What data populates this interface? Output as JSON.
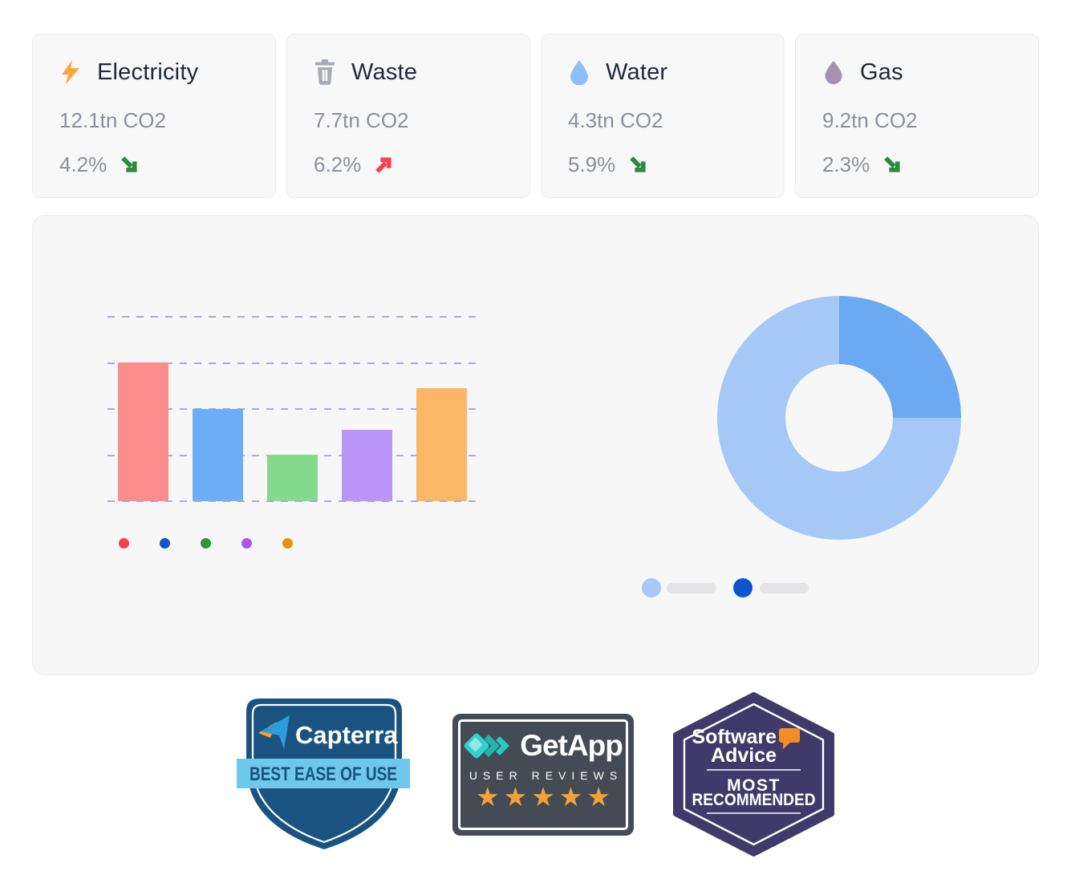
{
  "page": {
    "background": "#FFFFFF",
    "card_bg": "#F8F8F9",
    "panel_bg": "#F7F7F8",
    "card_border": "#ECECEE"
  },
  "stat_cards": [
    {
      "label": "Electricity",
      "icon": "bolt-icon",
      "icon_color": "#FAA73B",
      "value": "12.1tn CO2",
      "change": "4.2%",
      "trend": "down"
    },
    {
      "label": "Waste",
      "icon": "trash-icon",
      "icon_color": "#A7ABB3",
      "value": "7.7tn CO2",
      "change": "6.2%",
      "trend": "up"
    },
    {
      "label": "Water",
      "icon": "water-drop-icon",
      "icon_color": "#8FBFF9",
      "value": "4.3tn CO2",
      "change": "5.9%",
      "trend": "down"
    },
    {
      "label": "Gas",
      "icon": "gas-drop-icon",
      "icon_color": "#A492B4",
      "value": "9.2tn CO2",
      "change": "2.3%",
      "trend": "down"
    }
  ],
  "trend_colors": {
    "up": "#F6414E",
    "down": "#2E8B3C"
  },
  "chart_data": [
    {
      "type": "bar",
      "title": "",
      "categories": [
        "",
        "",
        "",
        "",
        ""
      ],
      "values": [
        60,
        40,
        20,
        31,
        49
      ],
      "bar_colors": [
        "#FC8B8B",
        "#6CAEF5",
        "#85DA8B",
        "#B996F7",
        "#FBB666"
      ],
      "legend_dot_colors": [
        "#F4404E",
        "#0E57C4",
        "#2F9145",
        "#A855F7",
        "#EB9109"
      ],
      "xlabel": "",
      "ylabel": "",
      "ylim": [
        0,
        80
      ],
      "gridline_step": 20,
      "grid": "horizontal-dashed",
      "gridline_color": "#ACAAD9",
      "legend_position": "bottom"
    },
    {
      "type": "pie",
      "donut": true,
      "title": "",
      "labels": [
        "",
        ""
      ],
      "values": [
        25,
        75
      ],
      "slice_colors": [
        "#6BAAF2",
        "#A5C8F7"
      ],
      "start_angle_deg": 0,
      "legend_dot_colors": [
        "#A6C9F8",
        "#0B56CC"
      ],
      "legend_pill_color": "#E4E4E6",
      "legend_position": "bottom"
    }
  ],
  "badges": {
    "capterra": {
      "logo_text": "Capterra",
      "ribbon_text": "BEST EASE OF USE",
      "shield_color": "#1B5380",
      "ribbon_color": "#6FC7EB",
      "ribbon_text_color": "#17537D",
      "logo_blue": "#2D9CDB",
      "logo_orange": "#FF9D28"
    },
    "getapp": {
      "logo_text": "GetApp",
      "subtitle": "USER REVIEWS",
      "stars": 5,
      "star_glyphs": "★★★★★",
      "bg_color": "#454B54",
      "star_color": "#F1A33A",
      "logo_teal": "#2ED3CB"
    },
    "software_advice": {
      "logo_line1": "Software",
      "logo_line2": "Advice",
      "award_line1": "MOST",
      "award_line2": "RECOMMENDED",
      "bg_color": "#403A6B",
      "bubble_color": "#F28C28"
    }
  }
}
